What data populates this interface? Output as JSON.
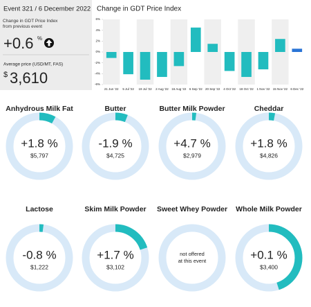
{
  "summary": {
    "event": "Event 321 / 6 December 2022",
    "change_label": "Change in GDT Price Index from previous event",
    "change_value": "+0.6",
    "change_unit": "%",
    "price_label": "Average price (USD/MT, FAS)",
    "price_currency": "$",
    "price_value": "3,610"
  },
  "chart_data": {
    "type": "bar",
    "title": "Change in GDT Price Index",
    "categories": [
      "21 Jun '22",
      "5 Jul '22",
      "19 Jul '22",
      "2 Aug '22",
      "16 Aug '22",
      "6 Sep '22",
      "20 Sep '22",
      "4 Oct '22",
      "18 Oct '22",
      "1 Nov '22",
      "15 Nov '22",
      "6 Dec '22"
    ],
    "values": [
      -1.1,
      -4.1,
      -5.1,
      -4.6,
      -2.6,
      4.5,
      1.5,
      -3.5,
      -4.6,
      -3.2,
      2.4,
      0.6
    ],
    "colors": [
      "#22bcbf",
      "#22bcbf",
      "#22bcbf",
      "#22bcbf",
      "#22bcbf",
      "#22bcbf",
      "#22bcbf",
      "#22bcbf",
      "#22bcbf",
      "#22bcbf",
      "#22bcbf",
      "#2a74d6"
    ],
    "ylim": [
      -6,
      6
    ],
    "yticks": [
      {
        "value": -6,
        "label": "-6%"
      },
      {
        "value": -4,
        "label": "-4%"
      },
      {
        "value": -2,
        "label": "-2%"
      },
      {
        "value": 0,
        "label": "0%"
      },
      {
        "value": 2,
        "label": "2%"
      },
      {
        "value": 4,
        "label": "4%"
      },
      {
        "value": 6,
        "label": "6%"
      }
    ]
  },
  "products": [
    {
      "name": "Anhydrous Milk Fat",
      "change": "+1.8 %",
      "price": "$5,797",
      "ring": 8
    },
    {
      "name": "Butter",
      "change": "-1.9 %",
      "price": "$4,725",
      "ring": 6
    },
    {
      "name": "Butter Milk Powder",
      "change": "+4.7 %",
      "price": "$2,979",
      "ring": 2
    },
    {
      "name": "Cheddar",
      "change": "+1.8 %",
      "price": "$4,826",
      "ring": 3
    },
    {
      "name": "Lactose",
      "change": "-0.8 %",
      "price": "$1,222",
      "ring": 2
    },
    {
      "name": "Skim Milk Powder",
      "change": "+1.7 %",
      "price": "$3,102",
      "ring": 20
    },
    {
      "name": "Sweet Whey Powder",
      "note_line1": "not offered",
      "note_line2": "at this event",
      "ring": null
    },
    {
      "name": "Whole Milk Powder",
      "change": "+0.1 %",
      "price": "$3,400",
      "ring": 45
    }
  ],
  "ring_max": 100
}
